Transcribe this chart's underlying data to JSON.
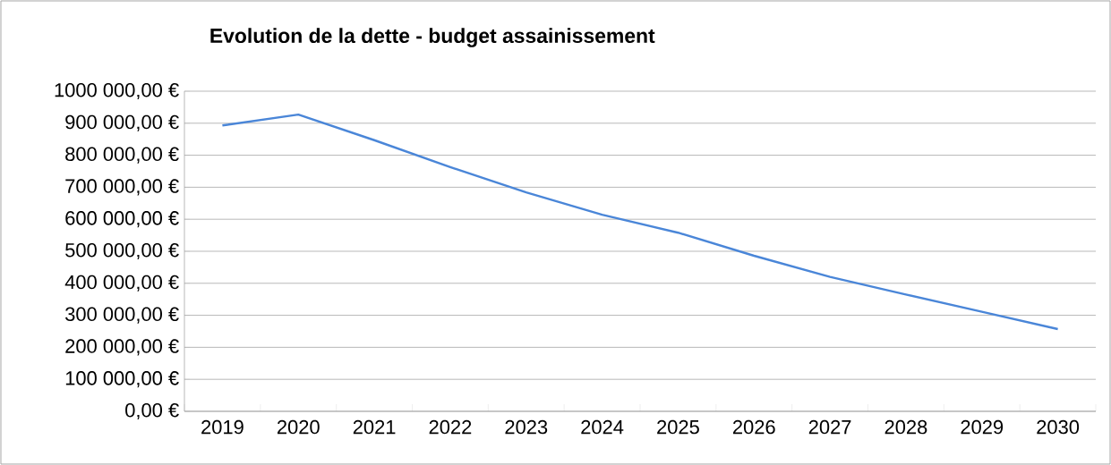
{
  "chart_data": {
    "type": "line",
    "title": "Evolution de la dette - budget assainissement",
    "categories": [
      "2019",
      "2020",
      "2021",
      "2022",
      "2023",
      "2024",
      "2025",
      "2026",
      "2027",
      "2028",
      "2029",
      "2030"
    ],
    "values": [
      893000,
      927000,
      847000,
      763000,
      684000,
      614000,
      558000,
      486000,
      420000,
      365000,
      311000,
      257000
    ],
    "color": "#4a86d8",
    "ylim": [
      0,
      1000000
    ],
    "yticks": [
      {
        "value": 0,
        "label": "0,00 €"
      },
      {
        "value": 100000,
        "label": "100 000,00 €"
      },
      {
        "value": 200000,
        "label": "200 000,00 €"
      },
      {
        "value": 300000,
        "label": "300 000,00 €"
      },
      {
        "value": 400000,
        "label": "400 000,00 €"
      },
      {
        "value": 500000,
        "label": "500 000,00 €"
      },
      {
        "value": 600000,
        "label": "600 000,00 €"
      },
      {
        "value": 700000,
        "label": "700 000,00 €"
      },
      {
        "value": 800000,
        "label": "800 000,00 €"
      },
      {
        "value": 900000,
        "label": "900 000,00 €"
      },
      {
        "value": 1000000,
        "label": "1000 000,00 €"
      }
    ],
    "grid": "y",
    "marker": "none",
    "line_style": "solid"
  }
}
